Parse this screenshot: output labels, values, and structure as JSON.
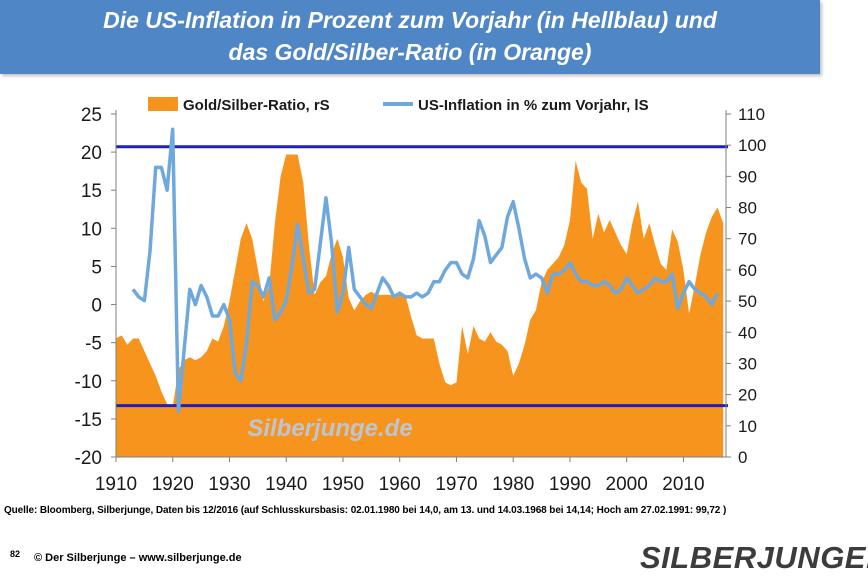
{
  "header": {
    "title_line1": "Die US-Inflation in Prozent zum Vorjahr (in Hellblau) und",
    "title_line2": "das Gold/Silber-Ratio (in Orange)"
  },
  "footer": {
    "source": "Quelle: Bloomberg, Silberjunge, Daten bis 12/2016 (auf Schlusskursbasis: 02.01.1980 bei 14,0, am 13. und 14.03.1968 bei 14,14; Hoch am 27.02.1991: 99,72 )",
    "page_number": "82",
    "copyright": "© Der Silberjunge – www.silberjunge.de",
    "logo_text": "SILBERJUNGE."
  },
  "chart_data": {
    "type": "area+line",
    "watermark": "Silberjunge.de",
    "x_ticks": [
      "1910",
      "1920",
      "1930",
      "1940",
      "1950",
      "1960",
      "1970",
      "1980",
      "1990",
      "2000",
      "2010"
    ],
    "x_range": [
      1910,
      2017.5
    ],
    "y_left": {
      "range": [
        -20,
        25
      ],
      "ticks": [
        "-20",
        "-15",
        "-10",
        "-5",
        "0",
        "5",
        "10",
        "15",
        "20",
        "25"
      ]
    },
    "y_right": {
      "range": [
        0,
        110
      ],
      "ticks": [
        "0",
        "10",
        "20",
        "30",
        "40",
        "50",
        "60",
        "70",
        "80",
        "90",
        "100",
        "110"
      ]
    },
    "grid": false,
    "legend_position": "top",
    "reference_lines_right_axis": [
      16.5,
      99.5
    ],
    "colors": {
      "ratio": "#f7941d",
      "inflation": "#6fa8dc",
      "reference": "#1f1fbf"
    },
    "series": [
      {
        "name": "Gold/Silber-Ratio, rS",
        "axis": "right",
        "kind": "area",
        "x": [
          1910,
          1911,
          1912,
          1913,
          1914,
          1915,
          1916,
          1917,
          1918,
          1919,
          1920,
          1921,
          1922,
          1923,
          1924,
          1925,
          1926,
          1927,
          1928,
          1929,
          1930,
          1931,
          1932,
          1933,
          1934,
          1935,
          1936,
          1937,
          1938,
          1939,
          1940,
          1941,
          1942,
          1943,
          1944,
          1945,
          1946,
          1947,
          1948,
          1949,
          1950,
          1951,
          1952,
          1953,
          1954,
          1955,
          1956,
          1957,
          1958,
          1959,
          1960,
          1961,
          1962,
          1963,
          1964,
          1965,
          1966,
          1967,
          1968,
          1969,
          1970,
          1971,
          1972,
          1973,
          1974,
          1975,
          1976,
          1977,
          1978,
          1979,
          1980,
          1981,
          1982,
          1983,
          1984,
          1985,
          1986,
          1987,
          1988,
          1989,
          1990,
          1991,
          1992,
          1993,
          1994,
          1995,
          1996,
          1997,
          1998,
          1999,
          2000,
          2001,
          2002,
          2003,
          2004,
          2005,
          2006,
          2007,
          2008,
          2009,
          2010,
          2011,
          2012,
          2013,
          2014,
          2015,
          2016,
          2017
        ],
        "values": [
          38,
          39,
          36,
          38,
          38,
          34,
          30,
          26,
          21,
          17,
          16,
          28,
          31,
          32,
          31,
          32,
          34,
          38,
          37,
          42,
          50,
          60,
          70,
          75,
          70,
          60,
          50,
          55,
          75,
          90,
          97,
          97,
          97,
          88,
          68,
          52,
          56,
          58,
          65,
          70,
          64,
          51,
          47,
          50,
          52,
          53,
          52,
          52,
          52,
          52,
          52,
          52,
          45,
          39,
          38,
          38,
          38,
          30,
          24,
          23,
          24,
          42,
          33,
          42,
          38,
          37,
          40,
          37,
          36,
          34,
          26,
          30,
          36,
          44,
          47,
          56,
          60,
          62,
          64,
          68,
          76,
          95,
          88,
          86,
          70,
          78,
          72,
          76,
          72,
          68,
          65,
          75,
          82,
          70,
          75,
          68,
          62,
          60,
          73,
          69,
          60,
          46,
          55,
          65,
          72,
          77,
          80,
          75
        ]
      },
      {
        "name": "US-Inflation in % zum Vorjahr, lS",
        "axis": "left",
        "kind": "line",
        "x": [
          1913,
          1914,
          1915,
          1916,
          1917,
          1918,
          1919,
          1920,
          1921,
          1922,
          1923,
          1924,
          1925,
          1926,
          1927,
          1928,
          1929,
          1930,
          1931,
          1932,
          1933,
          1934,
          1935,
          1936,
          1937,
          1938,
          1939,
          1940,
          1941,
          1942,
          1943,
          1944,
          1945,
          1946,
          1947,
          1948,
          1949,
          1950,
          1951,
          1952,
          1953,
          1954,
          1955,
          1956,
          1957,
          1958,
          1959,
          1960,
          1961,
          1962,
          1963,
          1964,
          1965,
          1966,
          1967,
          1968,
          1969,
          1970,
          1971,
          1972,
          1973,
          1974,
          1975,
          1976,
          1977,
          1978,
          1979,
          1980,
          1981,
          1982,
          1983,
          1984,
          1985,
          1986,
          1987,
          1988,
          1989,
          1990,
          1991,
          1992,
          1993,
          1994,
          1995,
          1996,
          1997,
          1998,
          1999,
          2000,
          2001,
          2002,
          2003,
          2004,
          2005,
          2006,
          2007,
          2008,
          2009,
          2010,
          2011,
          2012,
          2013,
          2014,
          2015,
          2016
        ],
        "values": [
          2,
          1,
          0.5,
          7,
          18,
          18,
          15,
          23,
          -14,
          -6,
          2,
          0,
          2.5,
          1,
          -1.5,
          -1.5,
          0,
          -2,
          -9,
          -10,
          -5,
          3,
          2.5,
          1,
          3.5,
          -2,
          -1,
          0.5,
          5,
          10.5,
          6,
          1.5,
          2,
          8,
          14,
          8,
          -1,
          1.5,
          7.5,
          2,
          1,
          0,
          -0.5,
          1.5,
          3.5,
          2.5,
          1,
          1.5,
          1,
          1,
          1.5,
          1,
          1.5,
          3,
          3,
          4.5,
          5.5,
          5.5,
          4,
          3.5,
          6,
          11,
          9,
          5.5,
          6.5,
          7.5,
          11.5,
          13.5,
          10,
          6,
          3.5,
          4,
          3.5,
          1.5,
          4,
          4,
          4.5,
          5.5,
          4,
          3,
          3,
          2.5,
          2.5,
          3,
          2.5,
          1.5,
          2,
          3.5,
          2.5,
          1.5,
          2,
          2.5,
          3.5,
          3,
          3,
          4,
          -0.5,
          1.5,
          3,
          2,
          1.5,
          1,
          0,
          1.5
        ]
      }
    ]
  }
}
